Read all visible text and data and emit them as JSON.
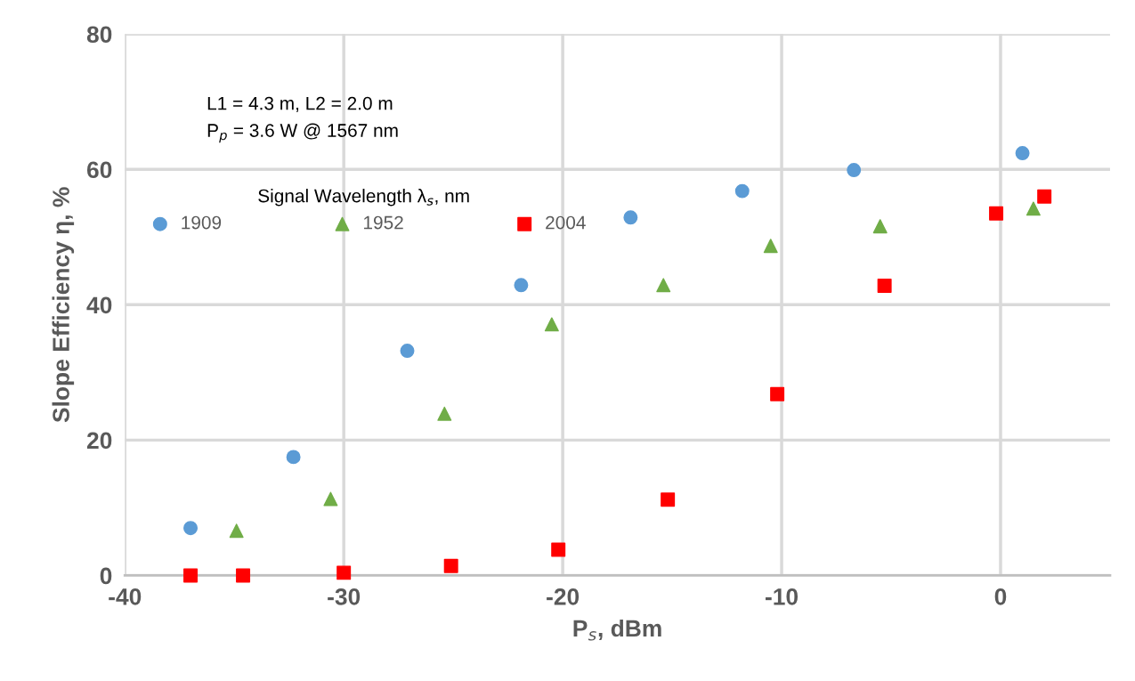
{
  "chart_data": {
    "type": "scatter",
    "xlabel": "P$_{s}$, dBm",
    "ylabel": "Slope Efficiency η, %",
    "annotations": [
      "L1 = 4.3 m, L2 = 2.0 m",
      "P$_{p}$ = 3.6 W @ 1567 nm"
    ],
    "legend_title": "Signal Wavelength λ$_{s}$, nm",
    "legend": "top left",
    "xlim": [
      -40,
      5
    ],
    "xticks": [
      -40,
      -30,
      -20,
      -10,
      0
    ],
    "ylim": [
      0,
      80
    ],
    "yticks": [
      0,
      20,
      40,
      60,
      80
    ],
    "grid": true,
    "series": [
      {
        "name": "1909",
        "color": "#5b9bd5",
        "marker": "circle",
        "x": [
          -37.0,
          -32.3,
          -27.1,
          -21.9,
          -16.9,
          -11.8,
          -6.7,
          1.0
        ],
        "values": [
          7.0,
          17.5,
          33.2,
          42.9,
          52.9,
          56.8,
          59.9,
          62.4
        ]
      },
      {
        "name": "1952",
        "color": "#70ad47",
        "marker": "triangle",
        "x": [
          -34.9,
          -30.6,
          -25.4,
          -20.5,
          -15.4,
          -10.5,
          -5.5,
          1.5
        ],
        "values": [
          6.6,
          11.3,
          23.9,
          37.1,
          42.9,
          48.7,
          51.6,
          54.2
        ]
      },
      {
        "name": "2004",
        "color": "#ff0000",
        "marker": "square",
        "x": [
          -37.0,
          -34.6,
          -30.0,
          -25.1,
          -20.2,
          -15.2,
          -10.2,
          -5.3,
          -0.2,
          2.0
        ],
        "values": [
          0.0,
          0.0,
          0.4,
          1.4,
          3.8,
          11.2,
          26.8,
          42.8,
          53.5,
          56.0
        ]
      }
    ]
  }
}
